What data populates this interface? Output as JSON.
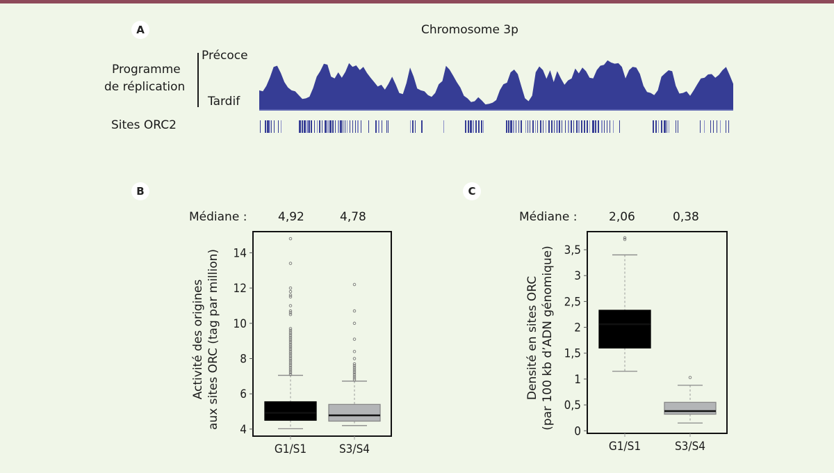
{
  "panel_a": {
    "badge": "A",
    "title": "Chromosome 3p",
    "row_label_line1": "Programme",
    "row_label_line2": "de réplication",
    "top_label": "Précoce",
    "bottom_label": "Tardif",
    "sites_label": "Sites ORC2",
    "profile_color": "#363d95"
  },
  "panel_b": {
    "badge": "B",
    "median_label": "Médiane :",
    "medians": [
      "4,92",
      "4,78"
    ]
  },
  "panel_c": {
    "badge": "C",
    "median_label": "Médiane :",
    "medians": [
      "2,06",
      "0,38"
    ]
  },
  "chart_data": [
    {
      "type": "area",
      "title": "Chromosome 3p",
      "ylabel": "Programme de réplication",
      "y_range_labels": [
        "Tardif",
        "Précoce"
      ],
      "ylim": [
        0,
        1
      ],
      "values": [
        0.38,
        0.33,
        0.45,
        0.62,
        0.78,
        0.82,
        0.7,
        0.5,
        0.42,
        0.38,
        0.33,
        0.28,
        0.22,
        0.2,
        0.25,
        0.42,
        0.6,
        0.72,
        0.87,
        0.82,
        0.62,
        0.6,
        0.68,
        0.6,
        0.72,
        0.85,
        0.8,
        0.84,
        0.72,
        0.8,
        0.7,
        0.58,
        0.52,
        0.45,
        0.45,
        0.38,
        0.5,
        0.6,
        0.48,
        0.33,
        0.28,
        0.5,
        0.8,
        0.6,
        0.4,
        0.38,
        0.33,
        0.28,
        0.26,
        0.3,
        0.48,
        0.55,
        0.8,
        0.75,
        0.65,
        0.5,
        0.42,
        0.28,
        0.2,
        0.15,
        0.18,
        0.22,
        0.18,
        0.12,
        0.1,
        0.14,
        0.2,
        0.35,
        0.48,
        0.52,
        0.68,
        0.75,
        0.68,
        0.42,
        0.22,
        0.18,
        0.25,
        0.7,
        0.82,
        0.72,
        0.58,
        0.75,
        0.5,
        0.72,
        0.6,
        0.45,
        0.55,
        0.6,
        0.75,
        0.68,
        0.8,
        0.7,
        0.6,
        0.6,
        0.72,
        0.82,
        0.85,
        0.9,
        0.88,
        0.87,
        0.85,
        0.8,
        0.6,
        0.72,
        0.8,
        0.8,
        0.65,
        0.45,
        0.35,
        0.3,
        0.28,
        0.38,
        0.6,
        0.68,
        0.75,
        0.7,
        0.45,
        0.32,
        0.3,
        0.35,
        0.28,
        0.35,
        0.48,
        0.6,
        0.58,
        0.66,
        0.68,
        0.58,
        0.65,
        0.75,
        0.78,
        0.65,
        0.5
      ]
    },
    {
      "type": "box",
      "panel": "B",
      "ylabel_line1": "Activité des origines",
      "ylabel_line2": "aux sites ORC (tag par million)",
      "categories": [
        "G1/S1",
        "S3/S4"
      ],
      "ylim": [
        3.6,
        15.2
      ],
      "yticks": [
        4,
        6,
        8,
        10,
        12,
        14
      ],
      "ytick_labels": [
        "4",
        "6",
        "8",
        "10",
        "12",
        "14"
      ],
      "boxes": [
        {
          "name": "G1/S1",
          "q1": 4.5,
          "median": 4.92,
          "q3": 5.55,
          "whisker_low": 4.02,
          "whisker_high": 7.05,
          "color": "#000000",
          "outliers": [
            14.8,
            13.4,
            12.0,
            11.8,
            11.6,
            11.5,
            11.0,
            10.7,
            10.6,
            10.5,
            9.7,
            9.6,
            9.5,
            9.4,
            9.3,
            9.2,
            9.1,
            9.0,
            8.9,
            8.8,
            8.7,
            8.6,
            8.5,
            8.4,
            8.3,
            8.2,
            8.1,
            8.0,
            7.9,
            7.8,
            7.7,
            7.6,
            7.5,
            7.4,
            7.3,
            7.2,
            7.1
          ]
        },
        {
          "name": "S3/S4",
          "q1": 4.45,
          "median": 4.78,
          "q3": 5.4,
          "whisker_low": 4.2,
          "whisker_high": 6.72,
          "color": "#b3b5b7",
          "outliers": [
            12.2,
            10.7,
            10.0,
            9.1,
            8.4,
            8.0,
            7.7,
            7.6,
            7.5,
            7.4,
            7.3,
            7.2,
            7.1,
            7.0,
            6.9,
            6.8
          ]
        }
      ]
    },
    {
      "type": "box",
      "panel": "C",
      "ylabel_line1": "Densité en sites ORC",
      "ylabel_line2": "(par 100 kb d’ADN génomique)",
      "categories": [
        "G1/S1",
        "S3/S4"
      ],
      "ylim": [
        -0.05,
        3.85
      ],
      "yticks": [
        0,
        0.5,
        1,
        1.5,
        2,
        2.5,
        3,
        3.5
      ],
      "ytick_labels": [
        "0",
        "0,5",
        "1",
        "1,5",
        "2",
        "2,5",
        "3",
        "3,5"
      ],
      "boxes": [
        {
          "name": "G1/S1",
          "q1": 1.6,
          "median": 2.06,
          "q3": 2.33,
          "whisker_low": 1.15,
          "whisker_high": 3.4,
          "color": "#000000",
          "outliers": [
            3.7,
            3.73
          ]
        },
        {
          "name": "S3/S4",
          "q1": 0.32,
          "median": 0.38,
          "q3": 0.55,
          "whisker_low": 0.15,
          "whisker_high": 0.88,
          "color": "#b3b5b7",
          "outliers": [
            1.03
          ]
        }
      ]
    }
  ]
}
